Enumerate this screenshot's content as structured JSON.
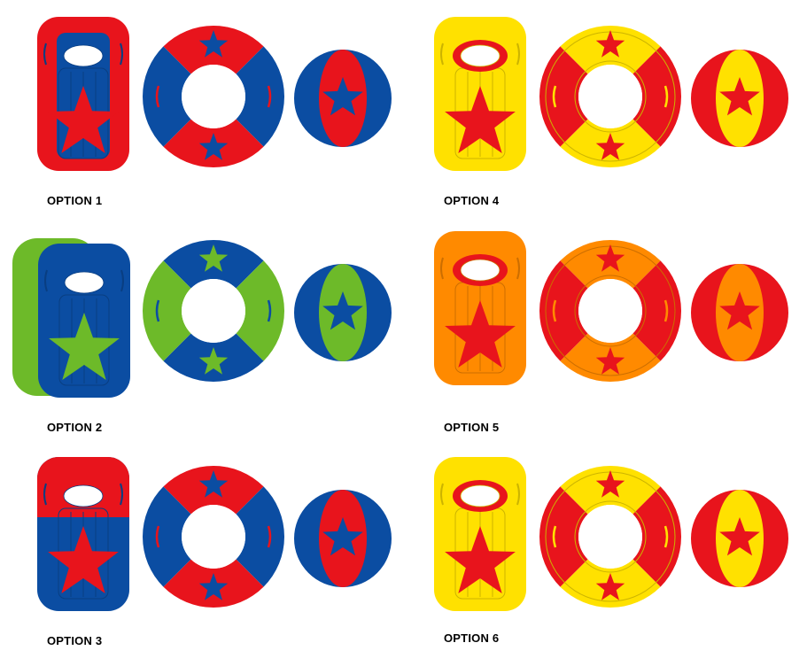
{
  "options": [
    {
      "label": "OPTION 1",
      "board_base": "#E8141C",
      "board_inner": "#0B4DA2",
      "board_star": "#E8141C",
      "board_split": false,
      "board_back": null,
      "ring_a": "#E8141C",
      "ring_b": "#0B4DA2",
      "ring_star": "#0B4DA2",
      "ring_handle": "#E8141C",
      "ring_rim": false,
      "ball_outer": "#0B4DA2",
      "ball_inner": "#E8141C",
      "ball_star": "#0B4DA2"
    },
    {
      "label": "OPTION 2",
      "board_base": "#0B4DA2",
      "board_inner": "#0B4DA2",
      "board_star": "#6DBA29",
      "board_split": false,
      "board_back": "#6DBA29",
      "ring_a": "#0B4DA2",
      "ring_b": "#6DBA29",
      "ring_star": "#6DBA29",
      "ring_handle": "#0B4DA2",
      "ring_rim": false,
      "ball_outer": "#0B4DA2",
      "ball_inner": "#6DBA29",
      "ball_star": "#0B4DA2"
    },
    {
      "label": "OPTION 3",
      "board_base": "#0B4DA2",
      "board_inner": "#0B4DA2",
      "board_star": "#E8141C",
      "board_split": true,
      "board_top": "#E8141C",
      "board_back": null,
      "ring_a": "#E8141C",
      "ring_b": "#0B4DA2",
      "ring_star": "#0B4DA2",
      "ring_handle": "#E8141C",
      "ring_rim": false,
      "ball_outer": "#0B4DA2",
      "ball_inner": "#E8141C",
      "ball_star": "#0B4DA2"
    },
    {
      "label": "OPTION 4",
      "board_base": "#FFE100",
      "board_inner": "#FFE100",
      "board_star": "#E8141C",
      "board_split": false,
      "board_back": null,
      "ring_a": "#FFE100",
      "ring_b": "#E8141C",
      "ring_star": "#E8141C",
      "ring_handle": "#FFE100",
      "ring_rim": true,
      "ball_outer": "#E8141C",
      "ball_inner": "#FFE100",
      "ball_star": "#E8141C"
    },
    {
      "label": "OPTION 5",
      "board_base": "#FF8A00",
      "board_inner": "#FF8A00",
      "board_star": "#E8141C",
      "board_split": false,
      "board_back": null,
      "ring_a": "#FF8A00",
      "ring_b": "#E8141C",
      "ring_star": "#E8141C",
      "ring_handle": "#FF8A00",
      "ring_rim": true,
      "ball_outer": "#E8141C",
      "ball_inner": "#FF8A00",
      "ball_star": "#E8141C"
    },
    {
      "label": "OPTION 6",
      "board_base": "#FFE100",
      "board_inner": "#FFE100",
      "board_star": "#E8141C",
      "board_split": false,
      "board_back": null,
      "ring_a": "#FFE100",
      "ring_b": "#E8141C",
      "ring_star": "#E8141C",
      "ring_handle": "#FFE100",
      "ring_rim": true,
      "ball_outer": "#E8141C",
      "ball_inner": "#FFE100",
      "ball_star": "#E8141C"
    }
  ]
}
